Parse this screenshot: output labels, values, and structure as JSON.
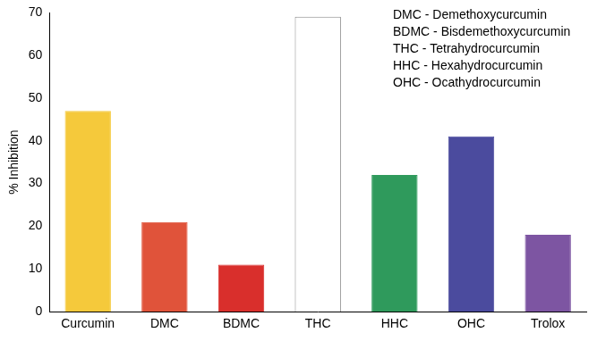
{
  "chart_data": {
    "type": "bar",
    "y_label": "% Inhibition",
    "categories": [
      "Curcumin",
      "DMC",
      "BDMC",
      "THC",
      "HHC",
      "OHC",
      "Trolox"
    ],
    "values": [
      47,
      21,
      11,
      69,
      32,
      41,
      18
    ],
    "colors": [
      "#f5c93b",
      "#e0533a",
      "#d92f2c",
      "#ffffff",
      "#2f9a5c",
      "#4b4b9e",
      "#7d55a2"
    ],
    "ylim": [
      0,
      70
    ],
    "yticks": [
      0,
      10,
      20,
      30,
      40,
      50,
      60,
      70
    ],
    "grid": false,
    "annotations": [
      "DMC - Demethoxycurcumin",
      "BDMC - Bisdemethoxycurcumin",
      "THC - Tetrahydrocurcumin",
      "HHC - Hexahydrocurcumin",
      "OHC - Ocathydrocurcumin"
    ]
  }
}
